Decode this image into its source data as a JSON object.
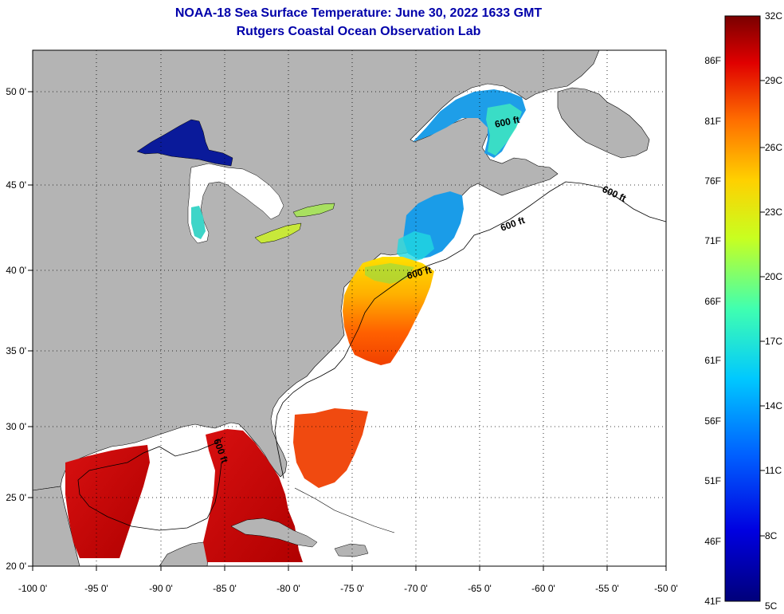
{
  "title": {
    "line1": "NOAA-18 Sea Surface Temperature:  June 30, 2022 1633 GMT",
    "line2": "Rutgers Coastal Ocean Observation Lab"
  },
  "map": {
    "lon_ticks": [
      "-100 0'",
      "-95 0'",
      "-90 0'",
      "-85 0'",
      "-80 0'",
      "-75 0'",
      "-70 0'",
      "-65 0'",
      "-60 0'",
      "-55 0'",
      "-50 0'"
    ],
    "lat_ticks": [
      "50 0'",
      "45 0'",
      "40 0'",
      "35 0'",
      "30 0'",
      "25 0'",
      "20 0'"
    ],
    "contour_label": "600 ft",
    "colors": {
      "land": "#b4b4b4",
      "water": "#ffffff",
      "grid": "#000000"
    }
  },
  "colorbar": {
    "celsius": [
      "32C",
      "29C",
      "26C",
      "23C",
      "20C",
      "17C",
      "14C",
      "11C",
      "8C",
      "5C"
    ],
    "fahrenheit": [
      "86F",
      "81F",
      "76F",
      "71F",
      "66F",
      "61F",
      "56F",
      "51F",
      "46F",
      "41F"
    ],
    "colors": [
      "#7a0000",
      "#e00000",
      "#ff7000",
      "#ffd000",
      "#c8ff20",
      "#30ffd0",
      "#00a0ff",
      "#0040ff",
      "#0000c0",
      "#00007a"
    ]
  }
}
